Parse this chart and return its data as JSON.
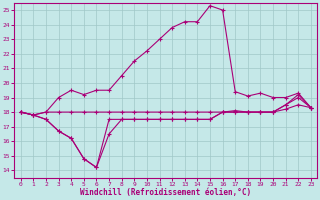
{
  "xlabel": "Windchill (Refroidissement éolien,°C)",
  "xlim": [
    -0.5,
    23.5
  ],
  "ylim": [
    13.5,
    25.5
  ],
  "yticks": [
    14,
    15,
    16,
    17,
    18,
    19,
    20,
    21,
    22,
    23,
    24,
    25
  ],
  "xticks": [
    0,
    1,
    2,
    3,
    4,
    5,
    6,
    7,
    8,
    9,
    10,
    11,
    12,
    13,
    14,
    15,
    16,
    17,
    18,
    19,
    20,
    21,
    22,
    23
  ],
  "bg_color": "#c5e8e8",
  "line_color": "#aa0077",
  "grid_color": "#a0c8c8",
  "lines": [
    {
      "x": [
        0,
        1,
        2,
        3,
        4,
        5,
        6,
        7,
        8,
        9,
        10,
        11,
        12,
        13,
        14,
        15,
        16,
        17,
        18,
        19,
        20,
        21,
        22,
        23
      ],
      "y": [
        18.0,
        17.8,
        18.0,
        19.0,
        19.5,
        19.2,
        19.5,
        19.5,
        20.5,
        21.5,
        22.2,
        23.0,
        23.8,
        24.2,
        24.2,
        25.3,
        25.0,
        19.4,
        19.1,
        19.3,
        19.0,
        19.0,
        19.3,
        18.3
      ]
    },
    {
      "x": [
        0,
        1,
        2,
        3,
        4,
        5,
        6,
        7,
        8,
        9,
        10,
        11,
        12,
        13,
        14,
        15,
        16,
        17,
        18,
        19,
        20,
        21,
        22,
        23
      ],
      "y": [
        18.0,
        17.8,
        18.0,
        18.0,
        18.0,
        18.0,
        18.0,
        18.0,
        18.0,
        18.0,
        18.0,
        18.0,
        18.0,
        18.0,
        18.0,
        18.0,
        18.0,
        18.1,
        18.0,
        18.0,
        18.0,
        18.2,
        18.5,
        18.3
      ]
    },
    {
      "x": [
        0,
        1,
        2,
        3,
        4,
        5,
        6,
        7,
        8,
        9,
        10,
        11,
        12,
        13,
        14,
        15,
        16,
        17,
        18,
        19,
        20,
        21,
        22,
        23
      ],
      "y": [
        18.0,
        17.8,
        17.5,
        16.7,
        16.2,
        14.8,
        14.2,
        16.5,
        17.5,
        17.5,
        17.5,
        17.5,
        17.5,
        17.5,
        17.5,
        17.5,
        18.0,
        18.0,
        18.0,
        18.0,
        18.0,
        18.5,
        19.0,
        18.3
      ]
    },
    {
      "x": [
        0,
        1,
        2,
        3,
        4,
        5,
        6,
        7,
        8,
        9,
        10,
        11,
        12,
        13,
        14,
        15,
        16,
        17,
        18,
        19,
        20,
        21,
        22,
        23
      ],
      "y": [
        18.0,
        17.8,
        17.5,
        16.7,
        16.2,
        14.8,
        14.2,
        17.5,
        17.5,
        17.5,
        17.5,
        17.5,
        17.5,
        17.5,
        17.5,
        17.5,
        18.0,
        18.0,
        18.0,
        18.0,
        18.0,
        18.5,
        19.2,
        18.3
      ]
    }
  ]
}
